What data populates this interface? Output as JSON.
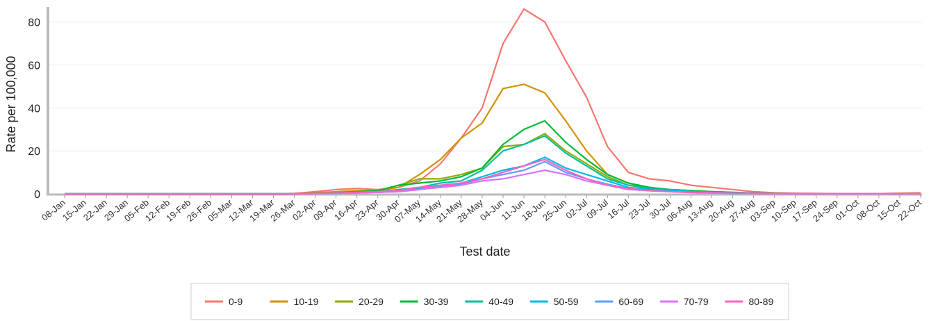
{
  "chart_data": {
    "type": "line",
    "x_label": "Test date",
    "y_label": "Rate per 100,000",
    "categories": [
      "08-Jan",
      "15-Jan",
      "22-Jan",
      "29-Jan",
      "05-Feb",
      "12-Feb",
      "19-Feb",
      "26-Feb",
      "05-Mar",
      "12-Mar",
      "19-Mar",
      "26-Mar",
      "02-Apr",
      "09-Apr",
      "16-Apr",
      "23-Apr",
      "30-Apr",
      "07-May",
      "14-May",
      "21-May",
      "28-May",
      "04-Jun",
      "11-Jun",
      "18-Jun",
      "25-Jun",
      "02-Jul",
      "09-Jul",
      "16-Jul",
      "23-Jul",
      "30-Jul",
      "06-Aug",
      "13-Aug",
      "20-Aug",
      "27-Aug",
      "03-Sep",
      "10-Sep",
      "17-Sep",
      "24-Sep",
      "01-Oct",
      "08-Oct",
      "15-Oct",
      "22-Oct"
    ],
    "ylim": [
      0,
      87
    ],
    "yticks": [
      0,
      20,
      40,
      60,
      80
    ],
    "grid": true,
    "series": [
      {
        "name": "0-9",
        "color": "#F8766D",
        "values": [
          0,
          0,
          0,
          0,
          0,
          0,
          0,
          0,
          0,
          0,
          0,
          0.2,
          1,
          2,
          2.5,
          2,
          3,
          6,
          14,
          26,
          40,
          70,
          86,
          80,
          62,
          45,
          22,
          10,
          7,
          6,
          4,
          3,
          2,
          1,
          0.5,
          0.3,
          0.2,
          0.1,
          0.1,
          0.1,
          0.3,
          0.5
        ]
      },
      {
        "name": "10-19",
        "color": "#D39200",
        "values": [
          0,
          0,
          0,
          0,
          0,
          0,
          0,
          0,
          0,
          0,
          0,
          0,
          0.5,
          1,
          1.5,
          1.5,
          3,
          9,
          16,
          26,
          33,
          49,
          51,
          47,
          34,
          20,
          9,
          5,
          3,
          2,
          1.5,
          1,
          0.5,
          0.3,
          0.2,
          0.1,
          0.1,
          0.1,
          0.1,
          0.1,
          0.2,
          0.3
        ]
      },
      {
        "name": "20-29",
        "color": "#93AA00",
        "values": [
          0,
          0,
          0,
          0,
          0,
          0,
          0,
          0,
          0,
          0,
          0,
          0,
          0.3,
          0.5,
          1,
          1.5,
          4,
          7,
          7,
          9,
          12,
          22,
          23,
          28,
          20,
          14,
          8,
          4,
          3,
          2,
          1.5,
          1,
          0.7,
          0.4,
          0.2,
          0.1,
          0.1,
          0.1,
          0.1,
          0.1,
          0.1,
          0.1
        ]
      },
      {
        "name": "30-39",
        "color": "#00BA38",
        "values": [
          0,
          0,
          0,
          0,
          0,
          0,
          0,
          0,
          0,
          0,
          0,
          0,
          0.3,
          0.5,
          1,
          1.5,
          4,
          5,
          6,
          8,
          12,
          23,
          30,
          34,
          24,
          16,
          9,
          5,
          3,
          2,
          1.5,
          1,
          0.7,
          0.4,
          0.2,
          0.1,
          0.1,
          0.1,
          0.1,
          0.1,
          0.1,
          0.1
        ]
      },
      {
        "name": "40-49",
        "color": "#00C19F",
        "values": [
          0,
          0,
          0,
          0,
          0,
          0,
          0,
          0,
          0,
          0,
          0,
          0,
          0.2,
          0.4,
          0.7,
          1,
          2,
          3,
          5,
          6,
          11,
          20,
          23,
          27,
          19,
          13,
          7,
          4,
          2.5,
          2,
          1.2,
          0.8,
          0.5,
          0.3,
          0.2,
          0.1,
          0.1,
          0.1,
          0.1,
          0.1,
          0.1,
          0.1
        ]
      },
      {
        "name": "50-59",
        "color": "#00B9E3",
        "values": [
          0,
          0,
          0,
          0,
          0,
          0,
          0,
          0,
          0,
          0,
          0,
          0,
          0.2,
          0.3,
          0.5,
          0.8,
          1.5,
          2.5,
          4,
          5,
          8,
          11,
          13,
          17,
          12,
          9,
          6,
          3,
          2,
          1.5,
          1,
          0.6,
          0.4,
          0.2,
          0.1,
          0.1,
          0.1,
          0.1,
          0.1,
          0.1,
          0.1,
          0.1
        ]
      },
      {
        "name": "60-69",
        "color": "#619CFF",
        "values": [
          0,
          0,
          0,
          0,
          0,
          0,
          0,
          0,
          0,
          0,
          0,
          0,
          0.1,
          0.3,
          0.5,
          0.7,
          1,
          2,
          3.5,
          4.5,
          7,
          9,
          11,
          15,
          10,
          7,
          4.5,
          2.5,
          1.5,
          1,
          0.7,
          0.5,
          0.3,
          0.2,
          0.1,
          0.1,
          0.1,
          0.1,
          0.1,
          0.1,
          0.1,
          0.1
        ]
      },
      {
        "name": "70-79",
        "color": "#DB72FB",
        "values": [
          0,
          0,
          0,
          0,
          0,
          0,
          0,
          0,
          0,
          0,
          0,
          0,
          0.1,
          0.3,
          0.5,
          0.7,
          1,
          2,
          3,
          4,
          6,
          7,
          9,
          11,
          9,
          6,
          4,
          2,
          1.5,
          1,
          0.6,
          0.4,
          0.3,
          0.2,
          0.1,
          0.1,
          0.1,
          0.1,
          0.1,
          0.1,
          0.1,
          0.1
        ]
      },
      {
        "name": "80-89",
        "color": "#FF61C3",
        "values": [
          0,
          0,
          0,
          0,
          0,
          0,
          0,
          0,
          0,
          0,
          0,
          0,
          0.2,
          0.4,
          0.7,
          1,
          1.5,
          3,
          4,
          5,
          7,
          10,
          13,
          16,
          11,
          7,
          4,
          2.5,
          1.5,
          1,
          0.7,
          0.5,
          0.3,
          0.2,
          0.1,
          0.1,
          0.1,
          0.1,
          0.1,
          0.1,
          0.1,
          0.1
        ]
      }
    ]
  }
}
